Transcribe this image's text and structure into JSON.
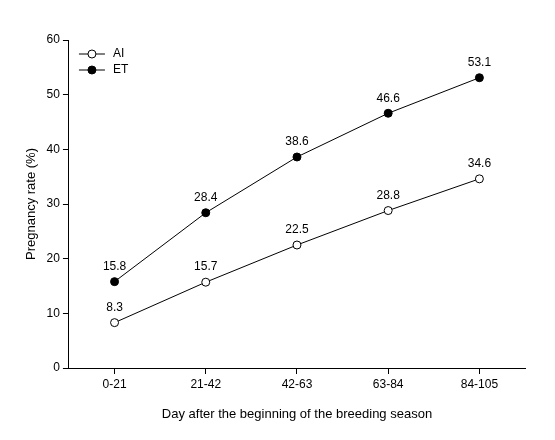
{
  "chart_data": {
    "type": "line",
    "x_label": "Day after the beginning of the breeding season",
    "y_label": "Pregnancy rate (%)",
    "categories": [
      "0-21",
      "21-42",
      "42-63",
      "63-84",
      "84-105"
    ],
    "series": [
      {
        "name": "AI",
        "color": "#000000",
        "marker": "open_circle",
        "values": [
          8.3,
          15.7,
          22.5,
          28.8,
          34.6
        ]
      },
      {
        "name": "ET",
        "color": "#000000",
        "marker": "filled_circle",
        "values": [
          15.8,
          28.4,
          38.6,
          46.6,
          53.1
        ]
      }
    ],
    "ylim": [
      0,
      60
    ],
    "yticks": [
      0,
      10,
      20,
      30,
      40,
      50,
      60
    ],
    "grid": false,
    "legend": "upper left",
    "data_labels": true
  }
}
